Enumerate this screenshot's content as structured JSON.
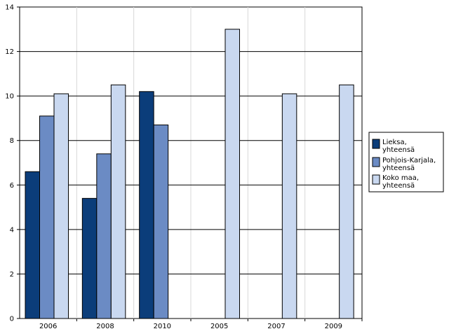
{
  "chart_data": {
    "type": "bar",
    "title": "",
    "xlabel": "",
    "ylabel": "",
    "categories": [
      "2006",
      "2008",
      "2010",
      "2005",
      "2007",
      "2009"
    ],
    "ylim": [
      0,
      14
    ],
    "yticks": [
      0,
      2,
      4,
      6,
      8,
      10,
      12,
      14
    ],
    "grid": "horizontal",
    "legend_position": "right",
    "series": [
      {
        "name": "Lieksa, yhteensä",
        "label_lines": [
          "Lieksa,",
          "yhteensä"
        ],
        "color": "#0b3d7a",
        "values": [
          6.6,
          5.4,
          10.2,
          null,
          null,
          null
        ]
      },
      {
        "name": "Pohjois-Karjala, yhteensä",
        "label_lines": [
          "Pohjois-Karjala,",
          "yhteensä"
        ],
        "color": "#6b8bc4",
        "values": [
          9.1,
          7.4,
          8.7,
          null,
          null,
          null
        ]
      },
      {
        "name": "Koko maa, yhteensä",
        "label_lines": [
          "Koko maa,",
          "yhteensä"
        ],
        "color": "#c9d8f0",
        "values": [
          10.1,
          10.5,
          null,
          13.0,
          10.1,
          10.5
        ]
      }
    ]
  }
}
